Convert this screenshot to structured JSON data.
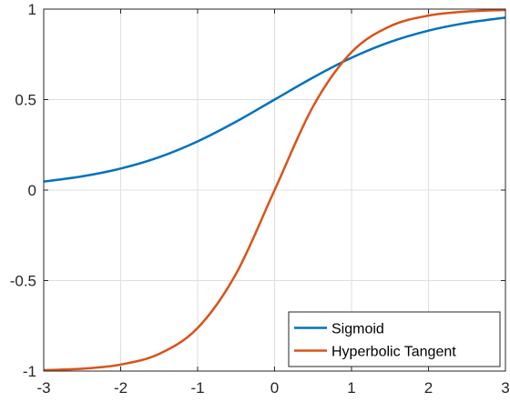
{
  "chart_data": {
    "type": "line",
    "title": "",
    "xlabel": "",
    "ylabel": "",
    "xlim": [
      -3,
      3
    ],
    "ylim": [
      -1,
      1
    ],
    "grid": true,
    "legend_position": "bottom-right",
    "x_ticks": [
      {
        "value": -3,
        "label": "-3"
      },
      {
        "value": -2,
        "label": "-2"
      },
      {
        "value": -1,
        "label": "-1"
      },
      {
        "value": 0,
        "label": "0"
      },
      {
        "value": 1,
        "label": "1"
      },
      {
        "value": 2,
        "label": "2"
      },
      {
        "value": 3,
        "label": "3"
      }
    ],
    "y_ticks": [
      {
        "value": -1,
        "label": "-1"
      },
      {
        "value": -0.5,
        "label": "-0.5"
      },
      {
        "value": 0,
        "label": "0"
      },
      {
        "value": 0.5,
        "label": "0.5"
      },
      {
        "value": 1,
        "label": "1"
      }
    ],
    "x": [
      -3,
      -2.5,
      -2,
      -1.5,
      -1,
      -0.5,
      0,
      0.5,
      1,
      1.5,
      2,
      2.5,
      3
    ],
    "series": [
      {
        "name": "Sigmoid",
        "color": "#0072BD",
        "values": [
          0.047,
          0.076,
          0.119,
          0.182,
          0.269,
          0.378,
          0.5,
          0.622,
          0.731,
          0.818,
          0.881,
          0.924,
          0.953
        ]
      },
      {
        "name": "Hyperbolic Tangent",
        "color": "#D95319",
        "values": [
          -0.995,
          -0.987,
          -0.964,
          -0.905,
          -0.762,
          -0.462,
          0,
          0.462,
          0.762,
          0.905,
          0.964,
          0.987,
          0.995
        ]
      }
    ]
  }
}
